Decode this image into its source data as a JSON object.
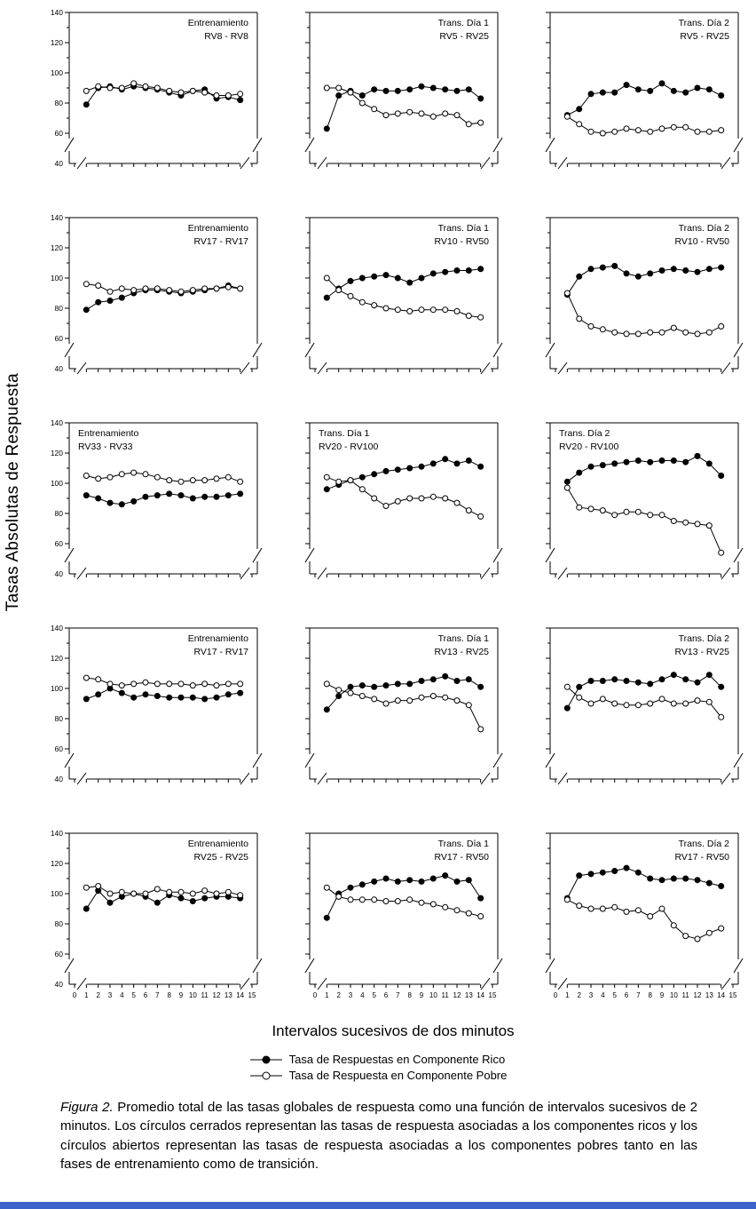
{
  "figure": {
    "y_axis_label": "Tasas Absolutas de Respuesta",
    "x_axis_label": "Intervalos sucesivos de dos minutos",
    "caption_label": "Figura 2.",
    "caption_text": "Promedio total de las tasas globales de respuesta como una función de intervalos sucesivos de 2 minutos. Los círculos cerrados representan las tasas de respuesta asociadas a los componentes ricos y los círculos abiertos representan las tasas de respuesta asociadas a los componentes pobres tanto en las fases de entrenamiento como de transición.",
    "legend": [
      {
        "marker": "closed",
        "label": "Tasa de Respuestas en Componente Rico"
      },
      {
        "marker": "open",
        "label": "Tasa de Respuesta en Componente Pobre"
      }
    ]
  },
  "chart_common": {
    "type": "line",
    "x": [
      1,
      2,
      3,
      4,
      5,
      6,
      7,
      8,
      9,
      10,
      11,
      12,
      13,
      14
    ],
    "x_ticks": [
      0,
      1,
      2,
      3,
      4,
      5,
      6,
      7,
      8,
      9,
      10,
      11,
      12,
      13,
      14,
      15
    ],
    "y_ticks": [
      140,
      120,
      100,
      80,
      60
    ],
    "y_minor_ticks": [
      130,
      110,
      90,
      70
    ],
    "y_break_label": "40",
    "ylim": [
      60,
      140
    ],
    "grid": false,
    "marker_closed_color": "#000000",
    "marker_open_fill": "#ffffff",
    "line_color": "#000000"
  },
  "chart_data": [
    {
      "panel": "r1c1",
      "title": "Entrenamiento",
      "subtitle": "RV8 - RV8",
      "title_pos": "right",
      "series": [
        {
          "name": "rico",
          "marker": "closed",
          "values": [
            79,
            90,
            91,
            89,
            91,
            90,
            89,
            87,
            85,
            88,
            89,
            83,
            84,
            82
          ]
        },
        {
          "name": "pobre",
          "marker": "open",
          "values": [
            88,
            91,
            90,
            90,
            93,
            91,
            90,
            88,
            87,
            88,
            87,
            85,
            85,
            86
          ]
        }
      ]
    },
    {
      "panel": "r1c2",
      "title": "Trans. Día 1",
      "subtitle": "RV5 - RV25",
      "title_pos": "right",
      "series": [
        {
          "name": "rico",
          "marker": "closed",
          "values": [
            63,
            85,
            88,
            85,
            89,
            88,
            88,
            89,
            91,
            90,
            89,
            88,
            89,
            83
          ]
        },
        {
          "name": "pobre",
          "marker": "open",
          "values": [
            90,
            90,
            87,
            80,
            76,
            72,
            73,
            74,
            73,
            71,
            73,
            72,
            66,
            67
          ]
        }
      ]
    },
    {
      "panel": "r1c3",
      "title": "Trans. Día 2",
      "subtitle": "RV5 - RV25",
      "title_pos": "right",
      "series": [
        {
          "name": "rico",
          "marker": "closed",
          "values": [
            72,
            76,
            86,
            87,
            87,
            92,
            89,
            88,
            93,
            88,
            87,
            90,
            89,
            85
          ]
        },
        {
          "name": "pobre",
          "marker": "open",
          "values": [
            71,
            66,
            61,
            60,
            61,
            63,
            62,
            61,
            63,
            64,
            64,
            61,
            61,
            62
          ]
        }
      ]
    },
    {
      "panel": "r2c1",
      "title": "Entrenamiento",
      "subtitle": "RV17 - RV17",
      "title_pos": "right",
      "series": [
        {
          "name": "rico",
          "marker": "closed",
          "values": [
            79,
            84,
            85,
            87,
            90,
            92,
            92,
            91,
            90,
            91,
            92,
            93,
            95,
            93
          ]
        },
        {
          "name": "pobre",
          "marker": "open",
          "values": [
            96,
            95,
            91,
            93,
            92,
            93,
            93,
            92,
            91,
            92,
            93,
            93,
            94,
            93
          ]
        }
      ]
    },
    {
      "panel": "r2c2",
      "title": "Trans. Día 1",
      "subtitle": "RV10 - RV50",
      "title_pos": "right",
      "series": [
        {
          "name": "rico",
          "marker": "closed",
          "values": [
            87,
            93,
            98,
            100,
            101,
            102,
            100,
            97,
            100,
            103,
            104,
            105,
            105,
            106
          ]
        },
        {
          "name": "pobre",
          "marker": "open",
          "values": [
            100,
            92,
            88,
            84,
            82,
            80,
            79,
            78,
            79,
            79,
            79,
            78,
            75,
            74
          ]
        }
      ]
    },
    {
      "panel": "r2c3",
      "title": "Trans. Día 2",
      "subtitle": "RV10 - RV50",
      "title_pos": "right",
      "series": [
        {
          "name": "rico",
          "marker": "closed",
          "values": [
            89,
            101,
            106,
            107,
            108,
            103,
            101,
            103,
            105,
            106,
            105,
            104,
            106,
            107
          ]
        },
        {
          "name": "pobre",
          "marker": "open",
          "values": [
            90,
            73,
            68,
            66,
            64,
            63,
            63,
            64,
            64,
            67,
            64,
            63,
            64,
            68
          ]
        }
      ]
    },
    {
      "panel": "r3c1",
      "title": "Entrenamiento",
      "subtitle": "RV33 - RV33",
      "title_pos": "left",
      "series": [
        {
          "name": "rico",
          "marker": "closed",
          "values": [
            92,
            90,
            87,
            86,
            88,
            91,
            92,
            93,
            92,
            90,
            91,
            91,
            92,
            93
          ]
        },
        {
          "name": "pobre",
          "marker": "open",
          "values": [
            105,
            103,
            104,
            106,
            107,
            106,
            104,
            102,
            101,
            102,
            102,
            103,
            104,
            101
          ]
        }
      ]
    },
    {
      "panel": "r3c2",
      "title": "Trans. Día 1",
      "subtitle": "RV20 - RV100",
      "title_pos": "left",
      "series": [
        {
          "name": "rico",
          "marker": "closed",
          "values": [
            96,
            99,
            102,
            104,
            106,
            108,
            109,
            110,
            111,
            113,
            116,
            113,
            115,
            111
          ]
        },
        {
          "name": "pobre",
          "marker": "open",
          "values": [
            104,
            101,
            102,
            96,
            90,
            85,
            88,
            90,
            90,
            91,
            90,
            87,
            82,
            78
          ]
        }
      ]
    },
    {
      "panel": "r3c3",
      "title": "Trans. Día 2",
      "subtitle": "RV20 - RV100",
      "title_pos": "left",
      "series": [
        {
          "name": "rico",
          "marker": "closed",
          "values": [
            101,
            107,
            111,
            112,
            113,
            114,
            115,
            114,
            115,
            115,
            114,
            118,
            113,
            105
          ]
        },
        {
          "name": "pobre",
          "marker": "open",
          "values": [
            97,
            84,
            83,
            82,
            79,
            81,
            81,
            79,
            79,
            75,
            74,
            73,
            72,
            54
          ]
        }
      ]
    },
    {
      "panel": "r4c1",
      "title": "Entrenamiento",
      "subtitle": "RV17 - RV17",
      "title_pos": "right",
      "series": [
        {
          "name": "rico",
          "marker": "closed",
          "values": [
            93,
            96,
            100,
            97,
            94,
            96,
            95,
            94,
            94,
            94,
            93,
            94,
            96,
            97
          ]
        },
        {
          "name": "pobre",
          "marker": "open",
          "values": [
            107,
            106,
            103,
            102,
            103,
            104,
            103,
            103,
            103,
            102,
            103,
            102,
            103,
            103
          ]
        }
      ]
    },
    {
      "panel": "r4c2",
      "title": "Trans. Día 1",
      "subtitle": "RV13 - RV25",
      "title_pos": "right",
      "series": [
        {
          "name": "rico",
          "marker": "closed",
          "values": [
            86,
            95,
            101,
            102,
            101,
            102,
            103,
            103,
            105,
            106,
            108,
            105,
            106,
            101
          ]
        },
        {
          "name": "pobre",
          "marker": "open",
          "values": [
            103,
            99,
            97,
            95,
            93,
            90,
            92,
            92,
            94,
            95,
            94,
            92,
            89,
            73
          ]
        }
      ]
    },
    {
      "panel": "r4c3",
      "title": "Trans. Día 2",
      "subtitle": "RV13 - RV25",
      "title_pos": "right",
      "series": [
        {
          "name": "rico",
          "marker": "closed",
          "values": [
            87,
            101,
            105,
            105,
            106,
            105,
            104,
            103,
            106,
            109,
            106,
            104,
            109,
            101
          ]
        },
        {
          "name": "pobre",
          "marker": "open",
          "values": [
            101,
            94,
            90,
            93,
            90,
            89,
            89,
            90,
            93,
            90,
            90,
            92,
            91,
            81
          ]
        }
      ]
    },
    {
      "panel": "r5c1",
      "title": "Entrenamiento",
      "subtitle": "RV25 - RV25",
      "title_pos": "right",
      "series": [
        {
          "name": "rico",
          "marker": "closed",
          "values": [
            90,
            102,
            94,
            98,
            100,
            98,
            94,
            99,
            97,
            95,
            97,
            98,
            98,
            97
          ]
        },
        {
          "name": "pobre",
          "marker": "open",
          "values": [
            104,
            105,
            100,
            101,
            100,
            100,
            103,
            101,
            101,
            100,
            102,
            100,
            101,
            99
          ]
        }
      ]
    },
    {
      "panel": "r5c2",
      "title": "Trans. Día 1",
      "subtitle": "RV17 - RV50",
      "title_pos": "right",
      "series": [
        {
          "name": "rico",
          "marker": "closed",
          "values": [
            84,
            100,
            104,
            106,
            108,
            110,
            108,
            109,
            108,
            110,
            112,
            108,
            109,
            97
          ]
        },
        {
          "name": "pobre",
          "marker": "open",
          "values": [
            104,
            98,
            96,
            96,
            96,
            95,
            95,
            96,
            94,
            93,
            91,
            89,
            87,
            85
          ]
        }
      ]
    },
    {
      "panel": "r5c3",
      "title": "Trans. Día 2",
      "subtitle": "RV17 - RV50",
      "title_pos": "right",
      "series": [
        {
          "name": "rico",
          "marker": "closed",
          "values": [
            97,
            112,
            113,
            114,
            115,
            117,
            114,
            110,
            109,
            110,
            110,
            109,
            107,
            105
          ]
        },
        {
          "name": "pobre",
          "marker": "open",
          "values": [
            96,
            92,
            90,
            90,
            91,
            88,
            89,
            85,
            90,
            79,
            72,
            70,
            74,
            77
          ]
        }
      ]
    }
  ]
}
